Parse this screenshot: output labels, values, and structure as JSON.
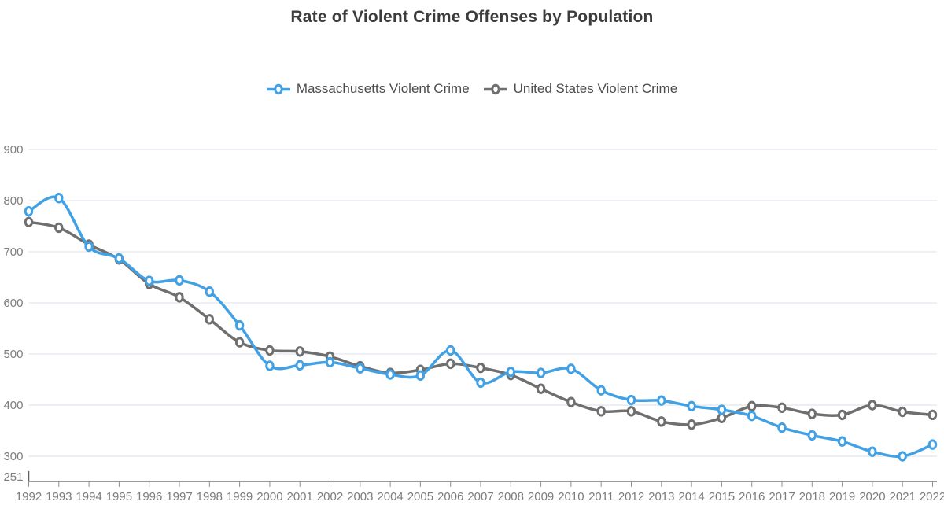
{
  "title": "Rate of Violent Crime Offenses by Population",
  "colors": {
    "massachusetts": "#42a1e4",
    "united_states": "#6f6f6f",
    "grid_line": "#e2e8ee",
    "axis_line": "#5f5f5f",
    "tick": "#8f8f8f",
    "axis_label": "#7c7c7c",
    "title_text": "#3c3c3c",
    "legend_text": "#4d4d4d",
    "background": "#ffffff"
  },
  "chart_data": {
    "type": "line",
    "title": "Rate of Violent Crime Offenses by Population",
    "xlabel": "",
    "ylabel": "",
    "grid": true,
    "smooth": true,
    "legend_position": "top-center",
    "ylim": [
      251,
      900
    ],
    "y_ticks": [
      900,
      800,
      700,
      600,
      500,
      400,
      300,
      251
    ],
    "x": [
      1992,
      1993,
      1994,
      1995,
      1996,
      1997,
      1998,
      1999,
      2000,
      2001,
      2002,
      2003,
      2004,
      2005,
      2006,
      2007,
      2008,
      2009,
      2010,
      2011,
      2012,
      2013,
      2014,
      2015,
      2016,
      2017,
      2018,
      2019,
      2020,
      2021,
      2022
    ],
    "series": [
      {
        "name": "Massachusetts Violent Crime",
        "color": "#42a1e4",
        "values": [
          779,
          805,
          710,
          687,
          643,
          644,
          622,
          556,
          477,
          478,
          484,
          472,
          460,
          458,
          507,
          444,
          465,
          463,
          471,
          429,
          410,
          409,
          398,
          391,
          379,
          356,
          341,
          329,
          309,
          300,
          323
        ]
      },
      {
        "name": "United States Violent Crime",
        "color": "#6f6f6f",
        "values": [
          758,
          747,
          714,
          685,
          637,
          611,
          568,
          523,
          507,
          505,
          495,
          476,
          463,
          469,
          481,
          473,
          459,
          432,
          406,
          388,
          388,
          368,
          362,
          375,
          398,
          395,
          383,
          381,
          400,
          387,
          381
        ]
      }
    ]
  }
}
